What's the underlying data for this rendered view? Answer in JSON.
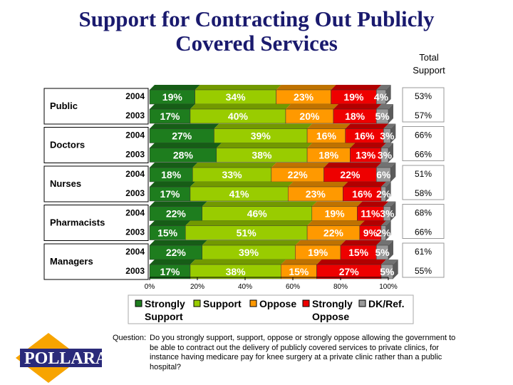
{
  "title": "Support for Contracting Out Publicly Covered Services",
  "total_support_header": "Total Support",
  "question_label": "Question:",
  "question_text": "Do you strongly support, support, oppose or strongly oppose allowing the government to be able to contract out the delivery of publicly covered services to private clinics, for instance having medicare pay for knee surgery at a private clinic rather than a public hospital?",
  "logo_text": "POLLARA",
  "chart_data": {
    "type": "bar",
    "orientation": "horizontal-stacked-100",
    "xlim": [
      0,
      100
    ],
    "x_ticks": [
      "0%",
      "20%",
      "40%",
      "60%",
      "80%",
      "100%"
    ],
    "groups": [
      "Public",
      "Doctors",
      "Nurses",
      "Pharmacists",
      "Managers"
    ],
    "years": [
      "2004",
      "2003"
    ],
    "series": [
      {
        "name": "Strongly Support",
        "color": "#1e7d1e",
        "values": [
          19,
          17,
          27,
          28,
          18,
          17,
          22,
          15,
          22,
          17
        ]
      },
      {
        "name": "Support",
        "color": "#99cc00",
        "values": [
          34,
          40,
          39,
          38,
          33,
          41,
          46,
          51,
          39,
          38
        ]
      },
      {
        "name": "Oppose",
        "color": "#ff9900",
        "values": [
          23,
          20,
          16,
          18,
          22,
          23,
          19,
          22,
          19,
          15
        ]
      },
      {
        "name": "Strongly Oppose",
        "color": "#ee0000",
        "values": [
          19,
          18,
          16,
          13,
          22,
          16,
          11,
          9,
          15,
          27
        ]
      },
      {
        "name": "DK/Ref.",
        "color": "#999999",
        "values": [
          4,
          5,
          3,
          3,
          6,
          2,
          3,
          2,
          5,
          5
        ]
      }
    ],
    "total_support": [
      [
        "53%",
        "57%"
      ],
      [
        "66%",
        "66%"
      ],
      [
        "51%",
        "58%"
      ],
      [
        "68%",
        "66%"
      ],
      [
        "61%",
        "55%"
      ]
    ],
    "legend_labels": [
      [
        "Strongly",
        "Support"
      ],
      [
        "Support"
      ],
      [
        "Oppose"
      ],
      [
        "Strongly",
        "Oppose"
      ],
      [
        "DK/Ref."
      ]
    ],
    "legend_placement": "bottom"
  }
}
